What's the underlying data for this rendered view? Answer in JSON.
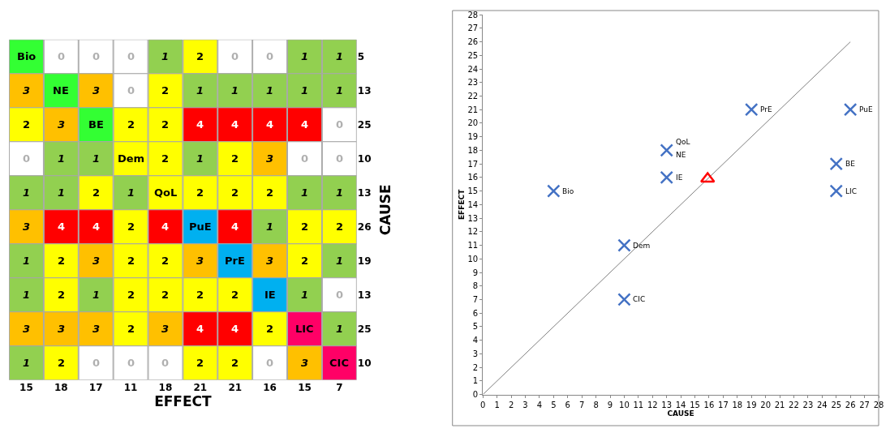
{
  "chart_data": [
    {
      "type": "heatmap",
      "xlabel": "EFFECT",
      "ylabel": "CAUSE",
      "categories": [
        "15",
        "18",
        "17",
        "11",
        "18",
        "21",
        "21",
        "16",
        "15",
        "7"
      ],
      "y_categories": [
        null,
        null,
        null,
        null,
        null,
        null,
        null,
        null,
        null,
        null
      ],
      "y2_categories": [
        "5",
        "13",
        "25",
        "10",
        "13",
        "26",
        "19",
        "13",
        "25",
        "10"
      ],
      "cells": [
        [
          null,
          0,
          0,
          0,
          1,
          2,
          0,
          0,
          1,
          1
        ],
        [
          3,
          null,
          3,
          0,
          2,
          1,
          1,
          1,
          1,
          1
        ],
        [
          2,
          3,
          null,
          2,
          2,
          4,
          4,
          4,
          4,
          0
        ],
        [
          0,
          1,
          1,
          null,
          2,
          1,
          2,
          3,
          0,
          0
        ],
        [
          1,
          1,
          2,
          1,
          null,
          2,
          2,
          2,
          1,
          1
        ],
        [
          3,
          4,
          4,
          2,
          4,
          null,
          4,
          1,
          2,
          2
        ],
        [
          1,
          2,
          3,
          2,
          2,
          3,
          null,
          3,
          2,
          1
        ],
        [
          1,
          2,
          1,
          2,
          2,
          2,
          2,
          null,
          1,
          0
        ],
        [
          3,
          3,
          3,
          2,
          3,
          4,
          4,
          2,
          null,
          1
        ],
        [
          1,
          2,
          0,
          0,
          0,
          2,
          2,
          0,
          3,
          null
        ]
      ],
      "cell_labels": [
        [
          "Bio",
          "0",
          "0",
          "0",
          "1",
          "2",
          "0",
          "0",
          "1",
          "1"
        ],
        [
          "3",
          "NE",
          "3",
          "0",
          "2",
          "1",
          "1",
          "1",
          "1",
          "1"
        ],
        [
          "2",
          "3",
          "BE",
          "2",
          "2",
          "4",
          "4",
          "4",
          "4",
          "0"
        ],
        [
          "0",
          "1",
          "1",
          "Dem",
          "2",
          "1",
          "2",
          "3",
          "0",
          "0"
        ],
        [
          "1",
          "1",
          "2",
          "1",
          "QoL",
          "2",
          "2",
          "2",
          "1",
          "1"
        ],
        [
          "3",
          "4",
          "4",
          "2",
          "4",
          "PuE",
          "4",
          "1",
          "2",
          "2"
        ],
        [
          "1",
          "2",
          "3",
          "2",
          "2",
          "3",
          "PrE",
          "3",
          "2",
          "1"
        ],
        [
          "1",
          "2",
          "1",
          "2",
          "2",
          "2",
          "2",
          "IE",
          "1",
          "0"
        ],
        [
          "3",
          "3",
          "3",
          "2",
          "3",
          "4",
          "4",
          "2",
          "LIC",
          "1"
        ],
        [
          "1",
          "2",
          "0",
          "0",
          "0",
          "2",
          "2",
          "0",
          "3",
          "CIC"
        ]
      ],
      "colors": [
        [
          "#33ff33",
          "#ffffff",
          "#ffffff",
          "#ffffff",
          "#92d050",
          "#ffff00",
          "#ffffff",
          "#ffffff",
          "#92d050",
          "#92d050"
        ],
        [
          "#ffc000",
          "#33ff33",
          "#ffc000",
          "#ffffff",
          "#ffff00",
          "#92d050",
          "#92d050",
          "#92d050",
          "#92d050",
          "#92d050"
        ],
        [
          "#ffff00",
          "#ffc000",
          "#33ff33",
          "#ffff00",
          "#ffff00",
          "#ff0000",
          "#ff0000",
          "#ff0000",
          "#ff0000",
          "#ffffff"
        ],
        [
          "#ffffff",
          "#92d050",
          "#92d050",
          "#ffff00",
          "#ffff00",
          "#92d050",
          "#ffff00",
          "#ffc000",
          "#ffffff",
          "#ffffff"
        ],
        [
          "#92d050",
          "#92d050",
          "#ffff00",
          "#92d050",
          "#ffff00",
          "#ffff00",
          "#ffff00",
          "#ffff00",
          "#92d050",
          "#92d050"
        ],
        [
          "#ffc000",
          "#ff0000",
          "#ff0000",
          "#ffff00",
          "#ff0000",
          "#00b0f0",
          "#ff0000",
          "#92d050",
          "#ffff00",
          "#ffff00"
        ],
        [
          "#92d050",
          "#ffff00",
          "#ffc000",
          "#ffff00",
          "#ffff00",
          "#ffc000",
          "#00b0f0",
          "#ffc000",
          "#ffff00",
          "#92d050"
        ],
        [
          "#92d050",
          "#ffff00",
          "#92d050",
          "#ffff00",
          "#ffff00",
          "#ffff00",
          "#ffff00",
          "#00b0f0",
          "#92d050",
          "#ffffff"
        ],
        [
          "#ffc000",
          "#ffc000",
          "#ffc000",
          "#ffff00",
          "#ffc000",
          "#ff0000",
          "#ff0000",
          "#ffff00",
          "#ff0066",
          "#92d050"
        ],
        [
          "#92d050",
          "#ffff00",
          "#ffffff",
          "#ffffff",
          "#ffffff",
          "#ffff00",
          "#ffff00",
          "#ffffff",
          "#ffc000",
          "#ff0066"
        ]
      ],
      "data_labels": true
    },
    {
      "type": "scatter",
      "xlabel": "CAUSE",
      "ylabel": "EFFECT",
      "xlim": [
        0,
        28
      ],
      "ylim": [
        0,
        28
      ],
      "xticks": [
        0,
        1,
        2,
        3,
        4,
        5,
        6,
        7,
        8,
        9,
        10,
        11,
        12,
        13,
        14,
        15,
        16,
        17,
        18,
        19,
        20,
        21,
        22,
        23,
        24,
        25,
        26,
        27,
        28
      ],
      "yticks": [
        0,
        1,
        2,
        3,
        4,
        5,
        6,
        7,
        8,
        9,
        10,
        11,
        12,
        13,
        14,
        15,
        16,
        17,
        18,
        19,
        20,
        21,
        22,
        23,
        24,
        25,
        26,
        27,
        28
      ],
      "series": [
        {
          "type": "line",
          "color": "#7f7f7f",
          "x": [
            0,
            26
          ],
          "values": [
            0,
            26
          ],
          "marker": "none"
        },
        {
          "type": "scatter",
          "color": "#4472c4",
          "marker": "cross",
          "x": [
            5,
            13,
            25,
            10,
            26,
            19,
            13,
            25,
            10
          ],
          "values": [
            15,
            18,
            17,
            11,
            21,
            21,
            16,
            15,
            7
          ]
        },
        {
          "type": "scatter",
          "color": "#ff0000",
          "marker": "triangle",
          "x": [
            15.9
          ],
          "values": [
            15.9
          ]
        }
      ],
      "annotations": [
        {
          "text": "Bio",
          "x": 5,
          "y": 15
        },
        {
          "text": "QoL",
          "x": 13,
          "y": 18
        },
        {
          "text": "NE",
          "x": 13,
          "y": 18
        },
        {
          "text": "BE",
          "x": 25,
          "y": 17
        },
        {
          "text": "Dem",
          "x": 10,
          "y": 11
        },
        {
          "text": "PuE",
          "x": 26,
          "y": 21
        },
        {
          "text": "PrE",
          "x": 19,
          "y": 21
        },
        {
          "text": "IE",
          "x": 13,
          "y": 16
        },
        {
          "text": "LIC",
          "x": 25,
          "y": 15
        },
        {
          "text": "CIC",
          "x": 10,
          "y": 7
        }
      ]
    }
  ]
}
